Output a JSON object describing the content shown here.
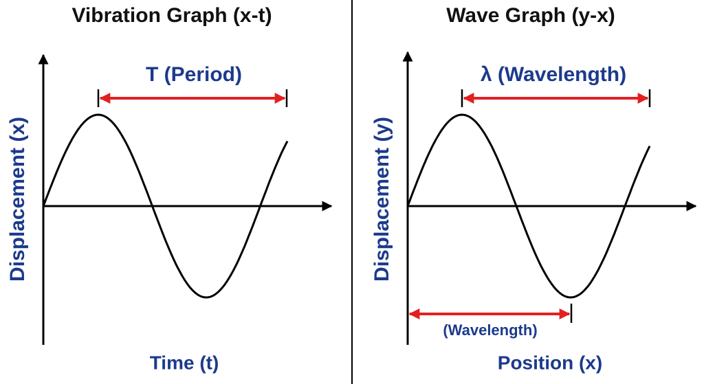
{
  "panels": [
    {
      "title": "Vibration Graph (x-t)",
      "span_label": "T (Period)",
      "y_label": "Displacement (x)",
      "x_label": "Time (t)"
    },
    {
      "title": "Wave Graph (y-x)",
      "span_label": "λ (Wavelength)",
      "y_label": "Displacement (y)",
      "x_label": "Position (x)",
      "extra_label": "(Wavelength)"
    }
  ]
}
